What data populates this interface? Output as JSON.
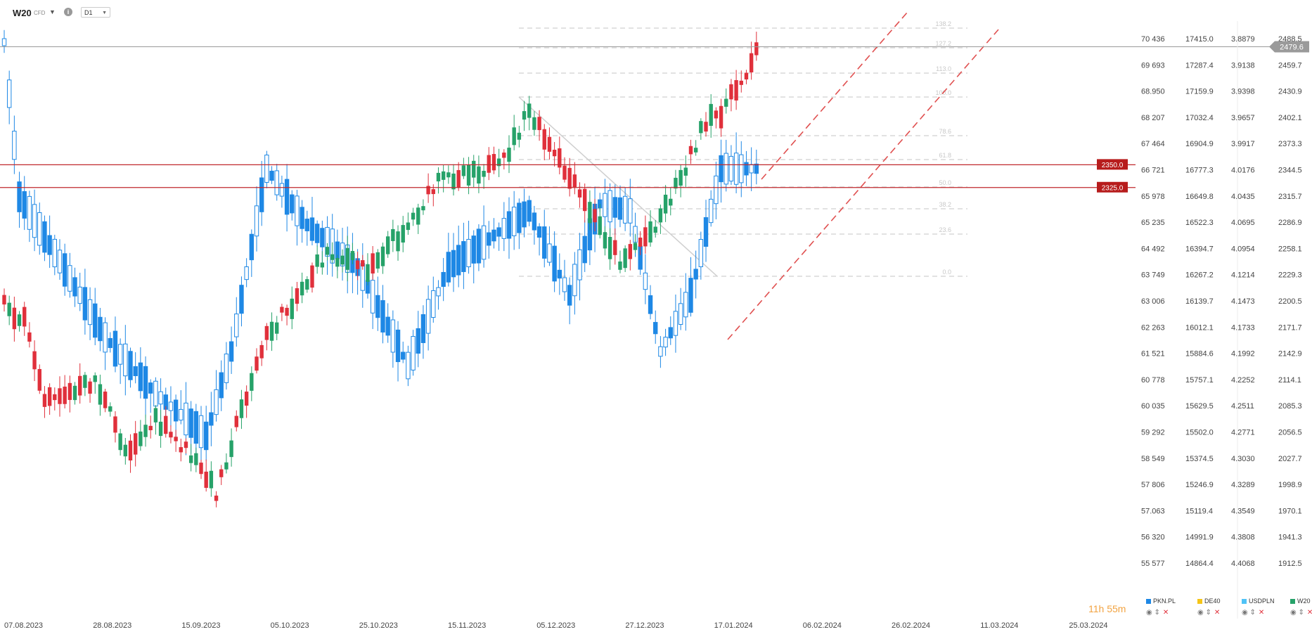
{
  "toolbar": {
    "symbol": "W20",
    "instrument_type": "CFD",
    "info_icon": "info-icon",
    "timeframe": "D1"
  },
  "countdown": "11h 55m",
  "legend": [
    {
      "label": "PKN.PL",
      "color": "#1e88e5"
    },
    {
      "label": "DE40",
      "color": "#f5c518"
    },
    {
      "label": "USDPLN",
      "color": "#4fc3f7"
    },
    {
      "label": "W20",
      "color": "#26a269"
    }
  ],
  "chart_data": {
    "type": "candlestick",
    "symbol": "W20",
    "timeframe": "D1",
    "x_tick_labels": [
      "07.08.2023",
      "28.08.2023",
      "15.09.2023",
      "05.10.2023",
      "25.10.2023",
      "15.11.2023",
      "05.12.2023",
      "27.12.2023",
      "17.01.2024",
      "06.02.2024",
      "26.02.2024",
      "11.03.2024",
      "25.03.2024"
    ],
    "right_axis_columns": {
      "PKN.PL": [
        "70 436",
        "69 693",
        "68.950",
        "68 207",
        "67 464",
        "66 721",
        "65 978",
        "65 235",
        "64 492",
        "63 749",
        "63 006",
        "62 263",
        "61 521",
        "60 778",
        "60 035",
        "59 292",
        "58 549",
        "57 806",
        "57.063",
        "56 320",
        "55 577"
      ],
      "DE40": [
        "17415.0",
        "17287.4",
        "17159.9",
        "17032.4",
        "16904.9",
        "16777.3",
        "16649.8",
        "16522.3",
        "16394.7",
        "16267.2",
        "16139.7",
        "16012.1",
        "15884.6",
        "15757.1",
        "15629.5",
        "15502.0",
        "15374.5",
        "15246.9",
        "15119.4",
        "14991.9",
        "14864.4"
      ],
      "USDPLN": [
        "3.8879",
        "3.9138",
        "3.9398",
        "3.9657",
        "3.9917",
        "4.0176",
        "4.0435",
        "4.0695",
        "4.0954",
        "4.1214",
        "4.1473",
        "4.1733",
        "4.1992",
        "4.2252",
        "4.2511",
        "4.2771",
        "4.3030",
        "4.3289",
        "4.3549",
        "4.3808",
        "4.4068"
      ],
      "W20": [
        "2488.5",
        "2459.7",
        "2430.9",
        "2402.1",
        "2373.3",
        "2344.5",
        "2315.7",
        "2286.9",
        "2258.1",
        "2229.3",
        "2200.5",
        "2171.7",
        "2142.9",
        "2114.1",
        "2085.3",
        "2056.5",
        "2027.7",
        "1998.9",
        "1970.1",
        "1941.3",
        "1912.5"
      ]
    },
    "w20_axis_range": [
      1912.5,
      2488.5
    ],
    "current_price": "2479.6",
    "horizontal_levels": [
      {
        "label": "2350.0",
        "value": 2350.0,
        "color": "#c0282d"
      },
      {
        "label": "2325.0",
        "value": 2325.0,
        "color": "#c0282d"
      }
    ],
    "fibonacci_levels": [
      {
        "label": "138.2"
      },
      {
        "label": "127.2"
      },
      {
        "label": "113.0"
      },
      {
        "label": "100.0"
      },
      {
        "label": "78.6"
      },
      {
        "label": "61.8"
      },
      {
        "label": "50.0"
      },
      {
        "label": "38.2"
      },
      {
        "label": "23.6"
      },
      {
        "label": "0.0"
      }
    ],
    "candle_colors": {
      "pkn_up": "#ffffff",
      "pkn_down": "#1e88e5",
      "pkn_outline": "#1e88e5",
      "w20_up": "#26a269",
      "w20_down": "#e0303b"
    },
    "trend_channel_color": "#e05050"
  }
}
